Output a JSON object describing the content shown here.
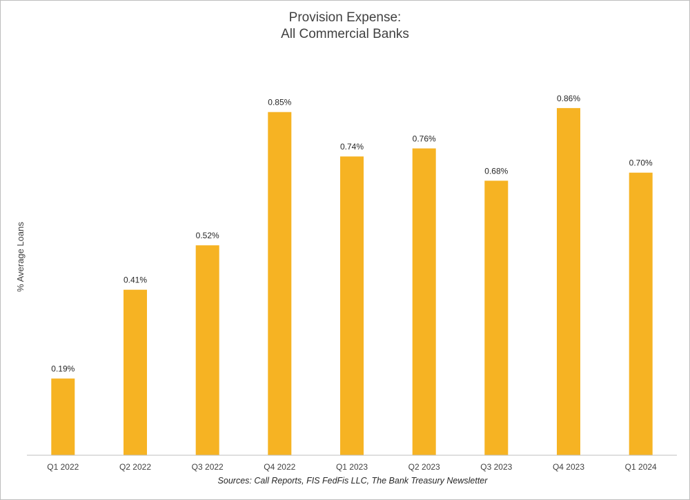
{
  "chart_data": {
    "type": "bar",
    "title_lines": [
      "Provision Expense:",
      "All Commercial Banks"
    ],
    "ylabel": "% Average Loans",
    "xlabel": "",
    "categories": [
      "Q1 2022",
      "Q2 2022",
      "Q3 2022",
      "Q4 2022",
      "Q1 2023",
      "Q2 2023",
      "Q3 2023",
      "Q4 2023",
      "Q1 2024"
    ],
    "values": [
      0.19,
      0.41,
      0.52,
      0.85,
      0.74,
      0.76,
      0.68,
      0.86,
      0.7
    ],
    "data_labels": [
      "0.19%",
      "0.41%",
      "0.52%",
      "0.85%",
      "0.74%",
      "0.76%",
      "0.68%",
      "0.86%",
      "0.70%"
    ],
    "ylim": [
      0,
      0.87
    ],
    "grid": false,
    "legend": "none",
    "bar_color": "#F6B323",
    "axis_color": "#bfbfbf",
    "source": "Sources: Call Reports, FIS FedFis LLC, The Bank Treasury Newsletter"
  }
}
